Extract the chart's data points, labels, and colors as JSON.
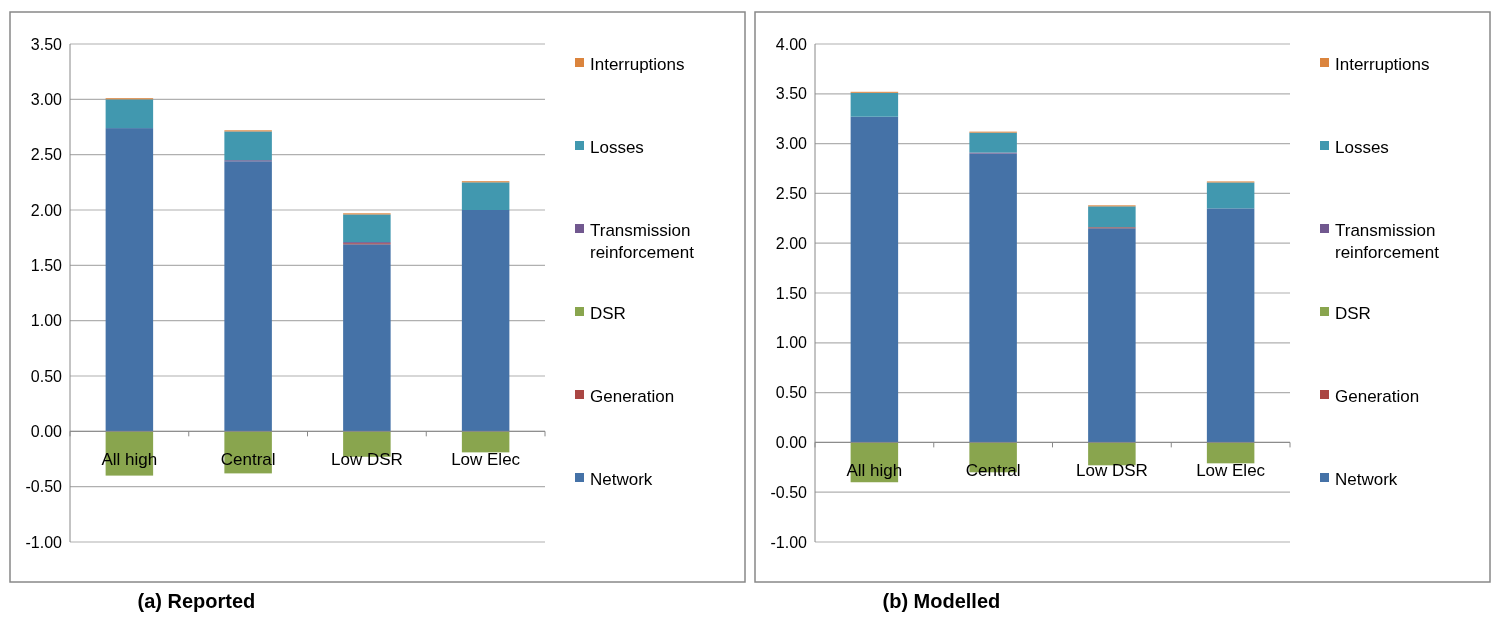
{
  "chart_data": [
    {
      "type": "bar",
      "title": "(a) Reported",
      "stacked": true,
      "categories": [
        "All high",
        "Central",
        "Low DSR",
        "Low Elec"
      ],
      "ylim": [
        -1,
        3.5
      ],
      "yticks": [
        {
          "value": -1,
          "label": "-1.00"
        },
        {
          "value": -0.5,
          "label": "-0.50"
        },
        {
          "value": 0,
          "label": "0.00"
        },
        {
          "value": 0.5,
          "label": "0.50"
        },
        {
          "value": 1,
          "label": "1.00"
        },
        {
          "value": 1.5,
          "label": "1.50"
        },
        {
          "value": 2,
          "label": "2.00"
        },
        {
          "value": 2.5,
          "label": "2.50"
        },
        {
          "value": 3,
          "label": "3.00"
        },
        {
          "value": 3.5,
          "label": "3.50"
        }
      ],
      "grid": "y",
      "legend": "right",
      "series": [
        {
          "name": "Network",
          "color": "#4572a7",
          "values": [
            2.74,
            2.44,
            1.69,
            2.0
          ]
        },
        {
          "name": "Generation",
          "color": "#aa4643",
          "values": [
            0,
            0,
            0.01,
            0
          ]
        },
        {
          "name": "DSR",
          "color": "#89a54e",
          "values": [
            -0.4,
            -0.38,
            -0.23,
            -0.19
          ]
        },
        {
          "name": "Transmission reinforcement",
          "color": "#71588f",
          "values": [
            0,
            0.01,
            0.01,
            0
          ]
        },
        {
          "name": "Losses",
          "color": "#4198af",
          "values": [
            0.26,
            0.26,
            0.25,
            0.25
          ]
        },
        {
          "name": "Interruptions",
          "color": "#db843d",
          "values": [
            0.01,
            0.01,
            0.01,
            0.01
          ]
        }
      ]
    },
    {
      "type": "bar",
      "title": "(b) Modelled",
      "stacked": true,
      "categories": [
        "All high",
        "Central",
        "Low DSR",
        "Low Elec"
      ],
      "ylim": [
        -1,
        4
      ],
      "yticks": [
        {
          "value": -1,
          "label": "-1.00"
        },
        {
          "value": -0.5,
          "label": "-0.50"
        },
        {
          "value": 0,
          "label": "0.00"
        },
        {
          "value": 0.5,
          "label": "0.50"
        },
        {
          "value": 1,
          "label": "1.00"
        },
        {
          "value": 1.5,
          "label": "1.50"
        },
        {
          "value": 2,
          "label": "2.00"
        },
        {
          "value": 2.5,
          "label": "2.50"
        },
        {
          "value": 3,
          "label": "3.00"
        },
        {
          "value": 3.5,
          "label": "3.50"
        },
        {
          "value": 4,
          "label": "4.00"
        }
      ],
      "grid": "y",
      "legend": "right",
      "series": [
        {
          "name": "Network",
          "color": "#4572a7",
          "values": [
            3.27,
            2.9,
            2.15,
            2.35
          ]
        },
        {
          "name": "Generation",
          "color": "#aa4643",
          "values": [
            0,
            0,
            0.01,
            0
          ]
        },
        {
          "name": "DSR",
          "color": "#89a54e",
          "values": [
            -0.4,
            -0.3,
            -0.23,
            -0.21
          ]
        },
        {
          "name": "Transmission reinforcement",
          "color": "#71588f",
          "values": [
            0,
            0.01,
            0,
            0
          ]
        },
        {
          "name": "Losses",
          "color": "#4198af",
          "values": [
            0.24,
            0.2,
            0.21,
            0.26
          ]
        },
        {
          "name": "Interruptions",
          "color": "#db843d",
          "values": [
            0.01,
            0.01,
            0.01,
            0.01
          ]
        }
      ]
    }
  ]
}
